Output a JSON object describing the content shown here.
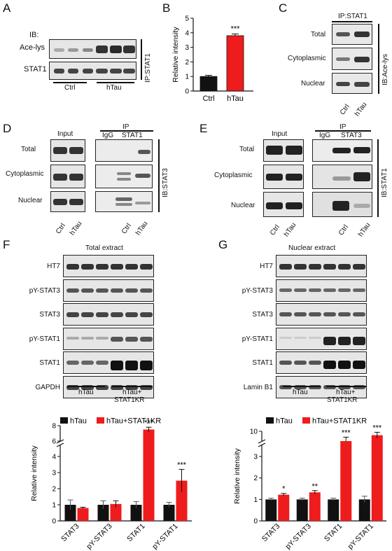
{
  "panels": {
    "A": "A",
    "B": "B",
    "C": "C",
    "D": "D",
    "E": "E",
    "F": "F",
    "G": "G"
  },
  "panelA": {
    "ib_label": "IB:",
    "rows": [
      "Ace-lys",
      "STAT1"
    ],
    "side_label": "IP:STAT1",
    "groups": [
      "Ctrl",
      "hTau"
    ]
  },
  "panelB": {
    "ylabel": "Relative intensity",
    "categories": [
      "Ctrl",
      "hTau"
    ],
    "stars": "***"
  },
  "panelC": {
    "top_label": "IP:STAT1",
    "rows": [
      "Total",
      "Cytoplasmic",
      "Nuclear"
    ],
    "side_label": "IB:Ace-lys",
    "lanes": [
      "Ctrl",
      "hTau"
    ]
  },
  "panelD": {
    "input_label": "Input",
    "ip_label": "IP",
    "ip_cols": [
      "IgG",
      "STAT1"
    ],
    "rows": [
      "Total",
      "Cytoplasmic",
      "Nuclear"
    ],
    "side_label": "IB:STAT3",
    "lanes_input": [
      "Ctrl",
      "hTau"
    ],
    "lanes_ip": [
      "Ctrl",
      "hTau"
    ]
  },
  "panelE": {
    "input_label": "Input",
    "ip_label": "IP",
    "ip_cols": [
      "IgG",
      "STAT3"
    ],
    "rows": [
      "Total",
      "Cytoplasmic",
      "Nuclear"
    ],
    "side_label": "IB:STAT1",
    "lanes_input": [
      "Ctrl",
      "hTau"
    ],
    "lanes_ip": [
      "Ctrl",
      "hTau"
    ]
  },
  "panelF": {
    "title": "Total extract",
    "rows": [
      "HT7",
      "pY-STAT3",
      "STAT3",
      "pY-STAT1",
      "STAT1",
      "GAPDH"
    ],
    "group1": "hTau",
    "group2_line1": "hTau+",
    "group2_line2": "STAT1KR"
  },
  "panelG": {
    "title": "Nuclear extract",
    "rows": [
      "HT7",
      "pY-STAT3",
      "STAT3",
      "pY-STAT1",
      "STAT1",
      "Lamin B1"
    ],
    "group1": "hTau",
    "group2_line1": "hTau+",
    "group2_line2": "STAT1KR"
  },
  "colors": {
    "black": "#111111",
    "red": "#ee1c1c",
    "blot_bg": "#e6e6e6"
  },
  "chart_data": [
    {
      "type": "bar",
      "panel": "B",
      "categories": [
        "Ctrl",
        "hTau"
      ],
      "values": [
        1.0,
        3.8
      ],
      "errors": [
        0.08,
        0.12
      ],
      "ylabel": "Relative intensity",
      "ylim": [
        0,
        5
      ],
      "yticks": [
        "0",
        "1",
        "2",
        "3",
        "4",
        "5"
      ],
      "annotations": [
        "",
        "***"
      ]
    },
    {
      "type": "bar",
      "panel": "F",
      "categories": [
        "STAT3",
        "pY-STAT3",
        "STAT1",
        "pY-STAT1"
      ],
      "series": [
        {
          "name": "hTau",
          "values": [
            1.0,
            1.0,
            1.0,
            1.0
          ],
          "errors": [
            0.3,
            0.25,
            0.2,
            0.15
          ]
        },
        {
          "name": "hTau+STAT1KR",
          "values": [
            0.8,
            1.05,
            7.5,
            2.5
          ],
          "errors": [
            0.05,
            0.2,
            0.3,
            0.7
          ]
        }
      ],
      "ylabel": "Relative intensity",
      "yticks_lower": [
        "0",
        "1",
        "2",
        "3",
        "4"
      ],
      "yticks_upper": [
        "6",
        "8"
      ],
      "axis_break": true,
      "annotations": [
        "",
        "",
        "***",
        "***"
      ]
    },
    {
      "type": "bar",
      "panel": "G",
      "categories": [
        "STAT3",
        "pY-STAT3",
        "STAT1",
        "pY-STAT1"
      ],
      "series": [
        {
          "name": "hTau",
          "values": [
            1.0,
            1.0,
            1.0,
            1.0
          ],
          "errors": [
            0.06,
            0.06,
            0.06,
            0.15
          ]
        },
        {
          "name": "hTau+STAT1KR",
          "values": [
            1.22,
            1.33,
            9.0,
            9.6
          ],
          "errors": [
            0.06,
            0.08,
            0.4,
            0.3
          ]
        }
      ],
      "ylabel": "Relative intensity",
      "yticks_lower": [
        "0",
        "1",
        "2",
        "3"
      ],
      "yticks_upper": [
        "10"
      ],
      "axis_break": true,
      "annotations": [
        "*",
        "**",
        "***",
        "***"
      ]
    }
  ]
}
